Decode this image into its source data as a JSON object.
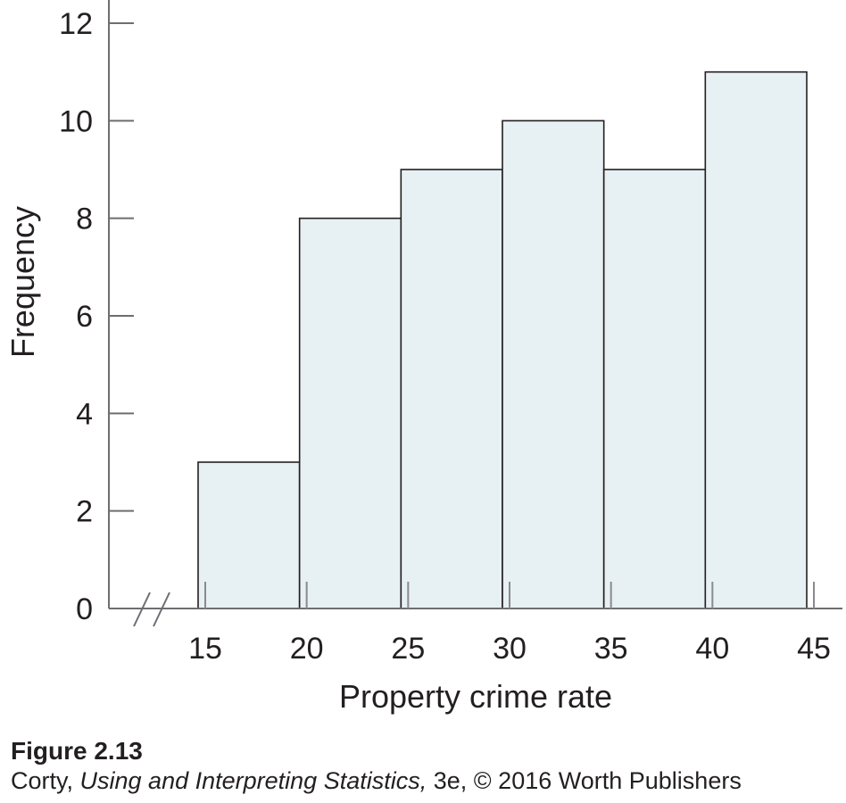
{
  "chart_data": {
    "type": "bar",
    "subtype": "histogram",
    "bins": [
      {
        "start": 15,
        "end": 20,
        "value": 3
      },
      {
        "start": 20,
        "end": 25,
        "value": 8
      },
      {
        "start": 25,
        "end": 30,
        "value": 9
      },
      {
        "start": 30,
        "end": 35,
        "value": 10
      },
      {
        "start": 35,
        "end": 40,
        "value": 9
      },
      {
        "start": 40,
        "end": 45,
        "value": 11
      }
    ],
    "x_ticks": [
      15,
      20,
      25,
      30,
      35,
      40,
      45
    ],
    "y_ticks": [
      0,
      2,
      4,
      6,
      8,
      10,
      12
    ],
    "xlabel": "Property crime rate",
    "ylabel": "Frequency",
    "xlim": [
      15,
      45
    ],
    "ylim": [
      0,
      12
    ],
    "x_axis_break": true,
    "grid": false,
    "legend": "none",
    "colors": {
      "bar_fill": "#e7f0f3",
      "bar_stroke": "#231f20",
      "axis": "#6d6e71",
      "text": "#231f20"
    }
  },
  "caption": {
    "figure_label": "Figure 2.13",
    "author": "Corty,",
    "book_title": "Using and Interpreting Statistics,",
    "rest": "3e, © 2016 Worth Publishers"
  }
}
